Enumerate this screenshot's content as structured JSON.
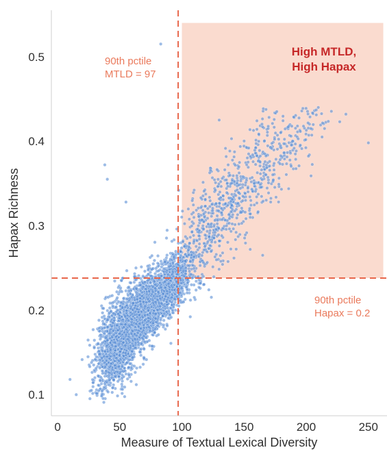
{
  "chart_data": {
    "type": "scatter",
    "title": "",
    "xlabel": "Measure of Textual Lexical Diversity",
    "ylabel": "Hapax Richness",
    "xlim": [
      -5,
      265
    ],
    "ylim": [
      0.075,
      0.555
    ],
    "x_ticks": [
      0,
      50,
      100,
      150,
      200,
      250
    ],
    "y_ticks": [
      0.1,
      0.2,
      0.3,
      0.4,
      0.5
    ],
    "y_tick_labels": [
      "0.1",
      "0.2",
      "0.3",
      "0.4",
      "0.5"
    ],
    "grid": false,
    "legend": "none",
    "point_color": "#5b8fd6",
    "threshold_color": "#e8664a",
    "thresholds": {
      "x": 97,
      "y": 0.238,
      "x_label_lines": [
        "90th pctile",
        "MTLD = 97"
      ],
      "y_label_lines": [
        "90th pctile",
        "Hapax = 0.2"
      ]
    },
    "highlight_region": {
      "x": [
        100,
        262
      ],
      "y": [
        0.238,
        0.54
      ],
      "color": "#f9d5c7",
      "label_lines": [
        "High MTLD,",
        "High Hapax"
      ],
      "label_color": "#c62828"
    },
    "point_clusters": [
      {
        "x_mean": 48,
        "x_sd": 9,
        "y_mean": 0.16,
        "y_sd": 0.025,
        "n": 1400
      },
      {
        "x_mean": 70,
        "x_sd": 12,
        "y_mean": 0.2,
        "y_sd": 0.02,
        "n": 1500
      },
      {
        "x_mean": 90,
        "x_sd": 10,
        "y_mean": 0.225,
        "y_sd": 0.015,
        "n": 800
      },
      {
        "x_mean": 120,
        "x_sd": 15,
        "y_mean": 0.29,
        "y_sd": 0.03,
        "n": 350
      },
      {
        "x_mean": 155,
        "x_sd": 18,
        "y_mean": 0.36,
        "y_sd": 0.03,
        "n": 300
      },
      {
        "x_mean": 190,
        "x_sd": 20,
        "y_mean": 0.4,
        "y_sd": 0.02,
        "n": 160
      }
    ],
    "outliers": [
      {
        "x": 83,
        "y": 0.515
      },
      {
        "x": 38,
        "y": 0.372
      },
      {
        "x": 40,
        "y": 0.355
      },
      {
        "x": 55,
        "y": 0.328
      },
      {
        "x": 130,
        "y": 0.425
      },
      {
        "x": 250,
        "y": 0.398
      },
      {
        "x": 227,
        "y": 0.423
      },
      {
        "x": 165,
        "y": 0.265
      },
      {
        "x": 110,
        "y": 0.215
      },
      {
        "x": 10,
        "y": 0.118
      },
      {
        "x": 15,
        "y": 0.1
      }
    ]
  }
}
